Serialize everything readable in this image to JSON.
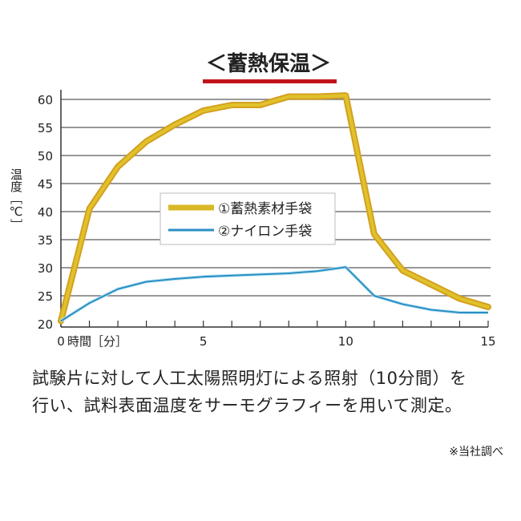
{
  "chart_data": {
    "type": "line",
    "title": "＜蓄熱保温＞",
    "title_underline_color": "#c0141c",
    "xlabel": "時間［分］",
    "ylabel": "温度［℃］",
    "x": [
      0,
      1,
      2,
      3,
      4,
      5,
      6,
      7,
      8,
      9,
      10,
      11,
      12,
      13,
      14,
      15
    ],
    "xlim": [
      0,
      15
    ],
    "ylim": [
      20,
      60
    ],
    "x_ticks": [
      0,
      5,
      10,
      15
    ],
    "y_ticks": [
      20,
      25,
      30,
      35,
      40,
      45,
      50,
      55,
      60
    ],
    "grid": true,
    "legend_position": "center-left",
    "series": [
      {
        "name": "①蓄熱素材手袋",
        "color": "#e0c22a",
        "values": [
          20.5,
          40.5,
          48,
          52.5,
          55.5,
          58,
          59,
          59,
          60.5,
          60.5,
          60.7,
          36,
          29.5,
          27,
          24.5,
          23
        ]
      },
      {
        "name": "②ナイロン手袋",
        "color": "#2a8fc4",
        "values": [
          20.5,
          23.7,
          26.2,
          27.5,
          28,
          28.4,
          28.6,
          28.8,
          29,
          29.4,
          30.1,
          25,
          23.5,
          22.5,
          22,
          22
        ]
      }
    ]
  },
  "notes": {
    "line1": "試験片に対して人工太陽照明灯による照射（10分間）を",
    "line2": "行い、試料表面温度をサーモグラフィーを用いて測定。",
    "source": "※当社調べ"
  }
}
